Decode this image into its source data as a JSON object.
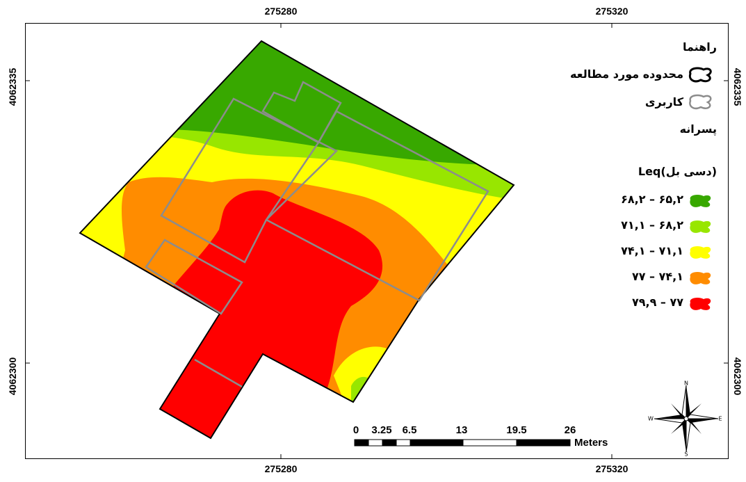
{
  "coords": {
    "x_top_1": "275280",
    "x_top_2": "275320",
    "x_bottom_1": "275280",
    "x_bottom_2": "275320",
    "y_left_1": "4062335",
    "y_left_2": "4062300",
    "y_right_1": "4062335",
    "y_right_2": "4062300"
  },
  "legend": {
    "title": "راهنما",
    "boundary_label": "محدوده مورد مطالعه",
    "landuse_label": "کاربری",
    "layer_title": "پسرانه",
    "leq_title": "Leq(دسی بل)",
    "classes": [
      {
        "label": "۶۵,۲ – ۶۸,۲",
        "color": "#38a800"
      },
      {
        "label": "۶۸,۲ – ۷۱,۱",
        "color": "#98e600"
      },
      {
        "label": "۷۱,۱ – ۷۴,۱",
        "color": "#ffff00"
      },
      {
        "label": "۷۴,۱ – ۷۷",
        "color": "#ff8c00"
      },
      {
        "label": "۷۷ – ۷۹,۹",
        "color": "#ff0000"
      }
    ]
  },
  "scale_bar": {
    "labels": [
      "0",
      "3.25",
      "6.5",
      "13",
      "19.5",
      "26"
    ],
    "unit": "Meters"
  },
  "north_arrow": {
    "n": "N",
    "s": "S",
    "e": "E",
    "w": "W"
  },
  "colors": {
    "zone_green": "#38a800",
    "zone_lightgreen": "#98e600",
    "zone_yellow": "#ffff00",
    "zone_orange": "#ff8c00",
    "zone_red": "#ff0000",
    "landuse_outline": "#8c8c8c"
  }
}
